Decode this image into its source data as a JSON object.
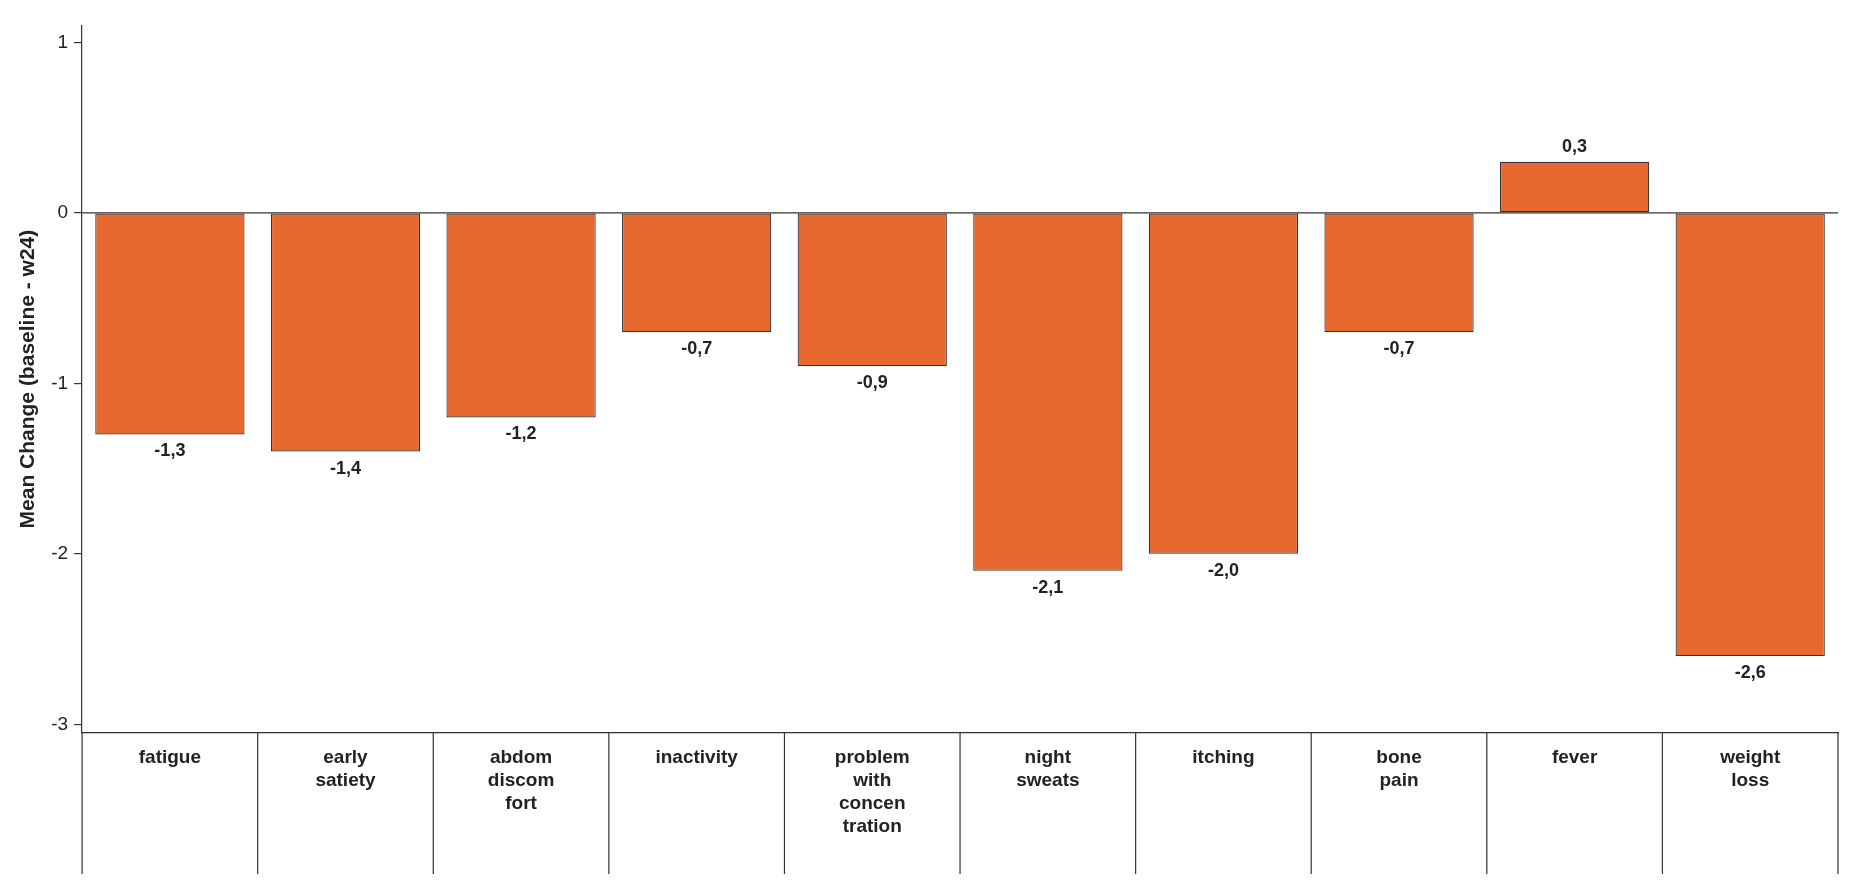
{
  "chart_data": {
    "type": "bar",
    "ylabel": "Mean Change (baseline - w24)",
    "categories": [
      "fatigue",
      "early satiety",
      "abdom discom fort",
      "inactivity",
      "problem with concen tration",
      "night sweats",
      "itching",
      "bone pain",
      "fever",
      "weight loss"
    ],
    "values": [
      -1.3,
      -1.4,
      -1.2,
      -0.7,
      -0.9,
      -2.1,
      -2.0,
      -0.7,
      0.3,
      -2.6
    ],
    "value_labels": [
      "-1,3",
      "-1,4",
      "-1,2",
      "-0,7",
      "-0,9",
      "-2,1",
      "-2,0",
      "-0,7",
      "0,3",
      "-2,6"
    ],
    "color": "#e8692f",
    "ref_lines": [
      {
        "axis": "y",
        "value": 0,
        "color": "#333333",
        "line_style": "solid"
      }
    ],
    "ylim": [
      -3.05,
      1.1
    ],
    "yticks": [
      -3,
      -2,
      -1,
      0,
      1
    ],
    "grid": false,
    "legend": false
  }
}
